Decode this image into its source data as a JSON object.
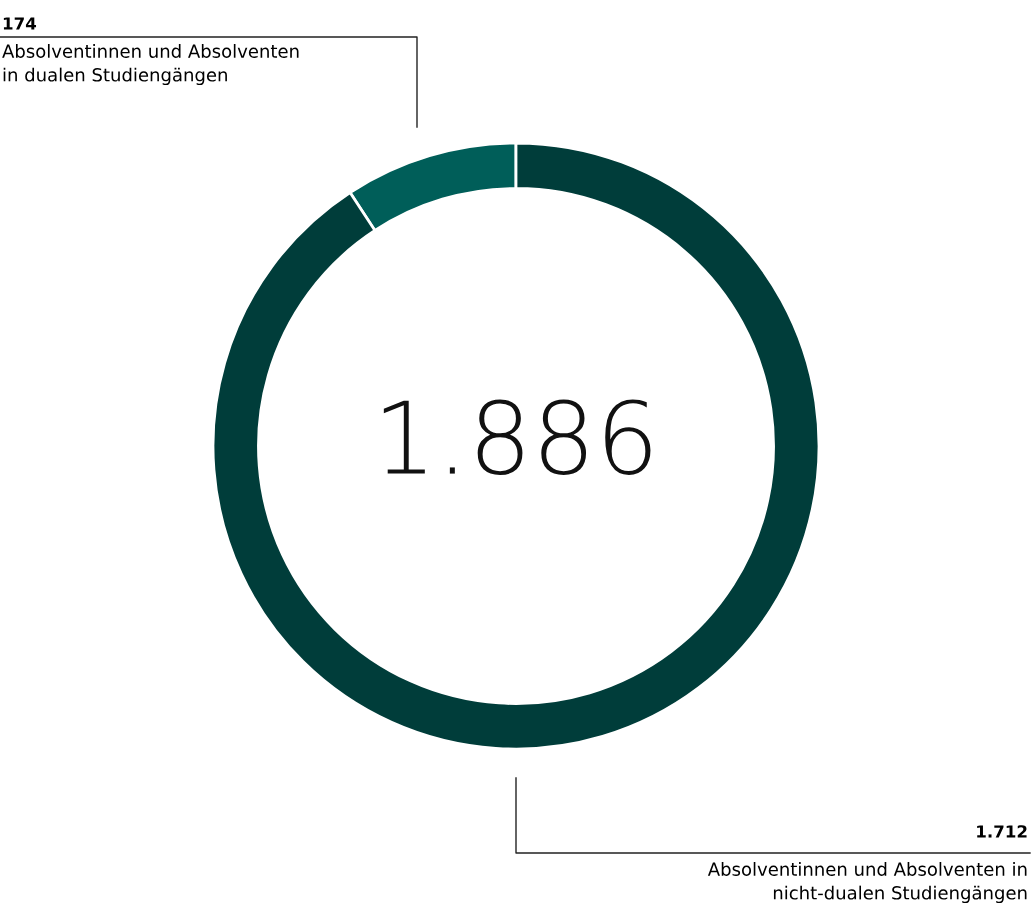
{
  "chart_data": {
    "type": "donut",
    "categories": [
      "Absolventinnen und Absolventen in dualen Studiengängen",
      "Absolventinnen und Absolventen in nicht-dualen Studiengängen"
    ],
    "values": [
      174,
      1712
    ],
    "value_labels": [
      "174",
      "1.712"
    ],
    "colors": [
      "#005e59",
      "#003d3a"
    ],
    "annotations": [
      "1.886"
    ],
    "legend": false
  }
}
